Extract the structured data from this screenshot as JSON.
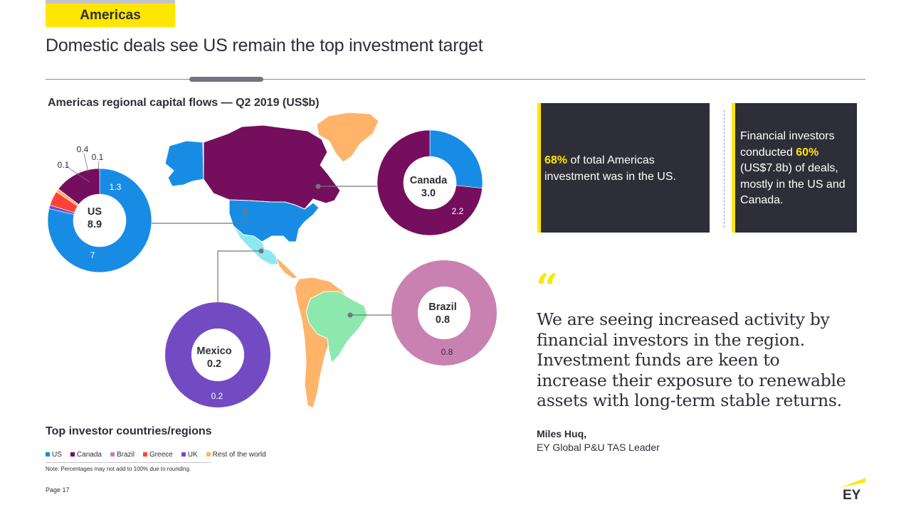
{
  "header": {
    "section_tag": "Americas",
    "title": "Domestic deals see US remain the top investment target"
  },
  "chart_data": {
    "type": "pie",
    "title": "Americas regional capital flows — Q2 2019 (US$b)",
    "legend_title": "Top investor countries/regions",
    "legend": [
      {
        "name": "US",
        "color": "#188ce5"
      },
      {
        "name": "Canada",
        "color": "#750e5c"
      },
      {
        "name": "Brazil",
        "color": "#c981b2"
      },
      {
        "name": "Greece",
        "color": "#ff4136"
      },
      {
        "name": "UK",
        "color": "#724bc3"
      },
      {
        "name": "Rest of the world",
        "color": "#ffb46a"
      }
    ],
    "donuts": [
      {
        "target": "US",
        "total": "8.9",
        "slices": [
          {
            "investor": "US",
            "value": 7,
            "label": "7",
            "color": "#188ce5"
          },
          {
            "investor": "UK",
            "value": 0.1,
            "label": "0.1",
            "color": "#724bc3"
          },
          {
            "investor": "Greece",
            "value": 0.4,
            "label": "0.4",
            "color": "#ff4136"
          },
          {
            "investor": "Rest of the world",
            "value": 0.1,
            "label": "0.1",
            "color": "#ffb46a"
          },
          {
            "investor": "Canada",
            "value": 1.3,
            "label": "1.3",
            "color": "#750e5c"
          }
        ]
      },
      {
        "target": "Canada",
        "total": "3.0",
        "slices": [
          {
            "investor": "US",
            "value": 0.8,
            "label": "0.8",
            "color": "#188ce5"
          },
          {
            "investor": "Canada",
            "value": 2.2,
            "label": "2.2",
            "color": "#750e5c"
          }
        ]
      },
      {
        "target": "Mexico",
        "total": "0.2",
        "slices": [
          {
            "investor": "UK",
            "value": 0.2,
            "label": "0.2",
            "color": "#724bc3"
          }
        ]
      },
      {
        "target": "Brazil",
        "total": "0.8",
        "slices": [
          {
            "investor": "Brazil",
            "value": 0.8,
            "label": "0.8",
            "color": "#c981b2"
          }
        ]
      }
    ],
    "note": "Note: Percentages may not add to 100% due to rounding."
  },
  "callouts": [
    {
      "highlight": "68%",
      "text": " of total Americas investment was in the US."
    },
    {
      "pre": "Financial investors conducted ",
      "highlight": "60%",
      "text": " (US$7.8b) of deals, mostly in the US and Canada."
    }
  ],
  "quote": {
    "mark": "“",
    "text": "We are seeing increased activity by financial investors in the region. Investment funds are keen to increase their exposure to renewable assets with long-term stable returns.",
    "author": "Miles Huq,",
    "role": "EY Global P&U TAS Leader"
  },
  "footer": {
    "page": "Page 17",
    "logo": "EY"
  },
  "map_colors": {
    "canada": "#750e5c",
    "us": "#188ce5",
    "mexico": "#8ce8f0",
    "brazil": "#8ce8ad",
    "rest": "#ffb46a",
    "greenland": "#ffb46a"
  }
}
